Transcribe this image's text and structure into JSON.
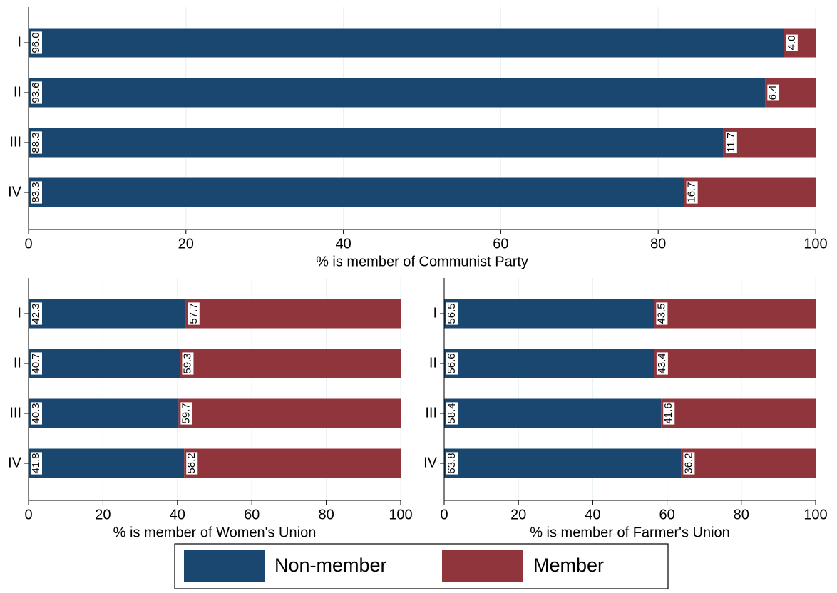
{
  "chart_data": [
    {
      "type": "bar",
      "orientation": "horizontal",
      "stacked": true,
      "x_label": "% is member of Communist Party",
      "categories": [
        "I",
        "II",
        "III",
        "IV"
      ],
      "series": [
        {
          "name": "Non-member",
          "color": "#1a476f",
          "values": [
            96.0,
            93.6,
            88.3,
            83.3
          ],
          "value_labels": [
            "96.0",
            "93.6",
            "88.3",
            "83.3"
          ]
        },
        {
          "name": "Member",
          "color": "#90353b",
          "values": [
            4.0,
            6.4,
            11.7,
            16.7
          ],
          "value_labels": [
            "4.0",
            "6.4",
            "11.7",
            "16.7"
          ]
        }
      ],
      "xlim": [
        0,
        100
      ],
      "xticks": [
        0,
        20,
        40,
        60,
        80,
        100
      ],
      "grid": true
    },
    {
      "type": "bar",
      "orientation": "horizontal",
      "stacked": true,
      "x_label": "% is member of Women's Union",
      "categories": [
        "I",
        "II",
        "III",
        "IV"
      ],
      "series": [
        {
          "color": "#1a476f",
          "values": [
            42.3,
            40.7,
            40.3,
            41.8
          ],
          "value_labels": [
            "42.3",
            "40.7",
            "40.3",
            "41.8"
          ]
        },
        {
          "color": "#90353b",
          "values": [
            57.7,
            59.3,
            59.7,
            58.2
          ],
          "value_labels": [
            "57.7",
            "59.3",
            "59.7",
            "58.2"
          ]
        }
      ],
      "xlim": [
        0,
        100
      ],
      "xticks": [
        0,
        20,
        40,
        60,
        80,
        100
      ],
      "grid": true
    },
    {
      "type": "bar",
      "orientation": "horizontal",
      "stacked": true,
      "x_label": "% is member of Farmer's Union",
      "categories": [
        "I",
        "II",
        "III",
        "IV"
      ],
      "series": [
        {
          "color": "#1a476f",
          "values": [
            56.5,
            56.6,
            58.4,
            63.8
          ],
          "value_labels": [
            "56.5",
            "56.6",
            "58.4",
            "63.8"
          ]
        },
        {
          "color": "#90353b",
          "values": [
            43.5,
            43.4,
            41.6,
            36.2
          ],
          "value_labels": [
            "43.5",
            "43.4",
            "41.6",
            "36.2"
          ]
        }
      ],
      "xlim": [
        0,
        100
      ],
      "xticks": [
        0,
        20,
        40,
        60,
        80,
        100
      ],
      "grid": true
    }
  ]
}
